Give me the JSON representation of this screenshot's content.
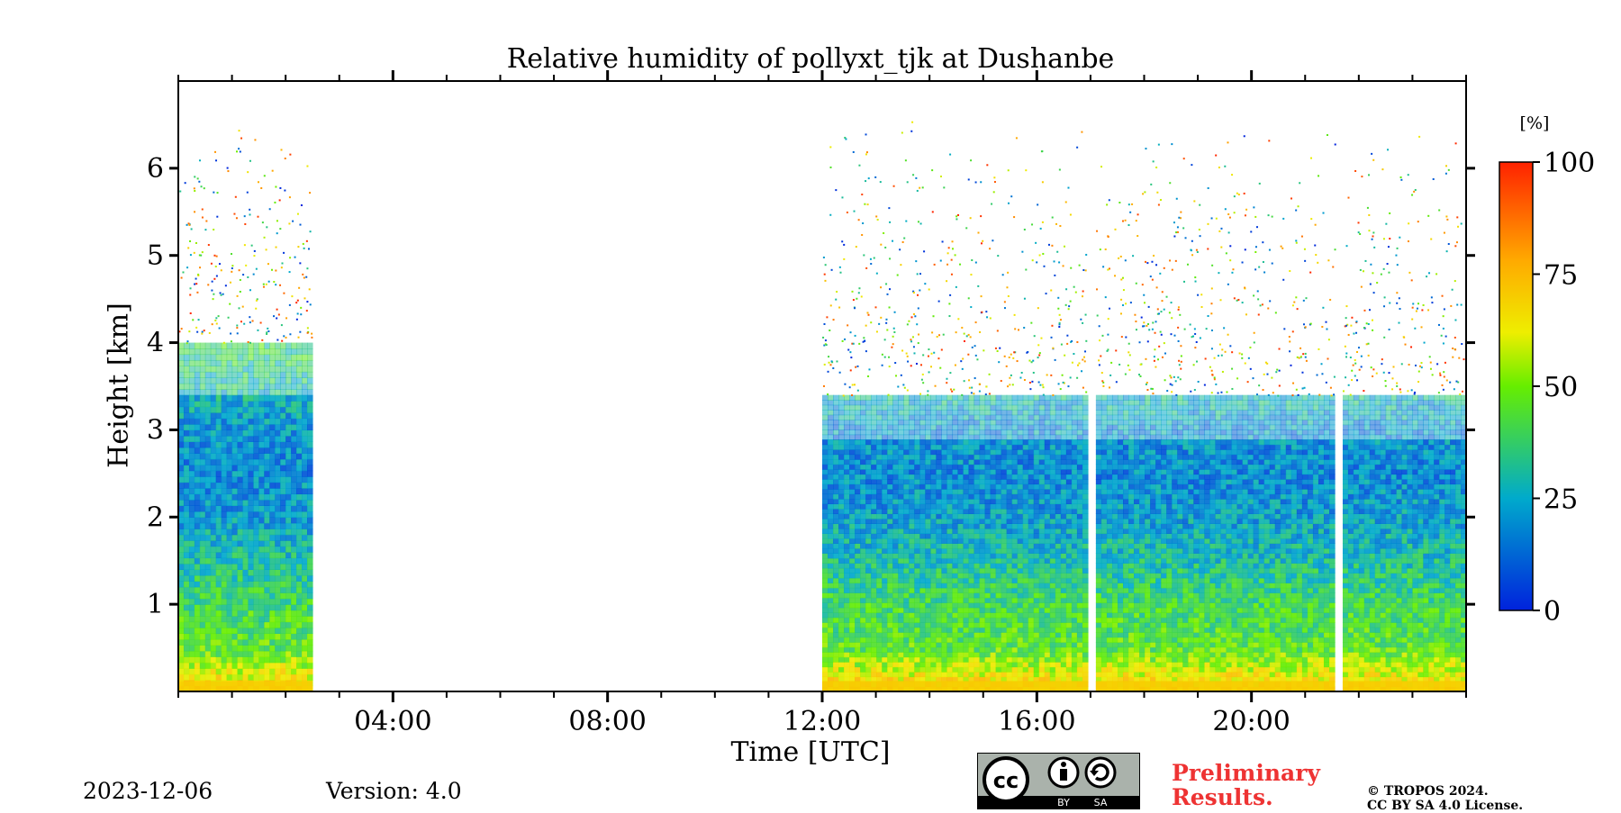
{
  "chart_data": {
    "type": "heatmap",
    "title": "Relative humidity of pollyxt_tjk at Dushanbe",
    "xlabel": "Time [UTC]",
    "ylabel": "Height [km]",
    "x_unit": "hours UTC",
    "xlim": [
      0,
      24
    ],
    "ylim": [
      0,
      7
    ],
    "x_major_ticks": [
      4,
      8,
      12,
      16,
      20
    ],
    "x_tick_labels": [
      "04:00",
      "08:00",
      "12:00",
      "16:00",
      "20:00"
    ],
    "y_ticks": [
      1,
      2,
      3,
      4,
      5,
      6
    ],
    "y_tick_labels": [
      "1",
      "2",
      "3",
      "4",
      "5",
      "6"
    ],
    "colorbar": {
      "label": "[%]",
      "range": [
        0,
        100
      ],
      "ticks": [
        0,
        25,
        50,
        75,
        100
      ],
      "tick_labels": [
        "0",
        "25",
        "50",
        "75",
        "100"
      ],
      "colormap": "jet"
    },
    "data_segments_hours": [
      [
        0,
        2.5
      ],
      [
        12,
        16.95
      ],
      [
        17.1,
        21.55
      ],
      [
        21.7,
        24
      ]
    ],
    "gaps_hours": [
      [
        2.5,
        12
      ],
      [
        16.95,
        17.1
      ],
      [
        21.55,
        21.7
      ]
    ],
    "profile_rh_percent_by_height_km": [
      {
        "height": 0.05,
        "rh": 70
      },
      {
        "height": 0.5,
        "rh": 45
      },
      {
        "height": 1.0,
        "rh": 40
      },
      {
        "height": 1.5,
        "rh": 30
      },
      {
        "height": 2.0,
        "rh": 22
      },
      {
        "height": 2.5,
        "rh": 18
      },
      {
        "height": 3.0,
        "rh": 20
      },
      {
        "height": 3.5,
        "rh": 30
      },
      {
        "height": 4.5,
        "rh": 50
      },
      {
        "height": 5.5,
        "rh": 70
      }
    ],
    "colors": {
      "c0": "#0022dd",
      "c25": "#00aacc",
      "c50": "#66ee00",
      "c75": "#ffbb00",
      "c100": "#ff2200"
    }
  },
  "footer": {
    "date": "2023-12-06",
    "version": "Version: 4.0",
    "preliminary_line1": "Preliminary",
    "preliminary_line2": "Results.",
    "copyright_line1": "© TROPOS 2024.",
    "copyright_line2": "CC BY SA 4.0 License.",
    "cc_badge": {
      "icon": "cc-by-sa-icon",
      "by": "BY",
      "sa": "SA"
    }
  }
}
